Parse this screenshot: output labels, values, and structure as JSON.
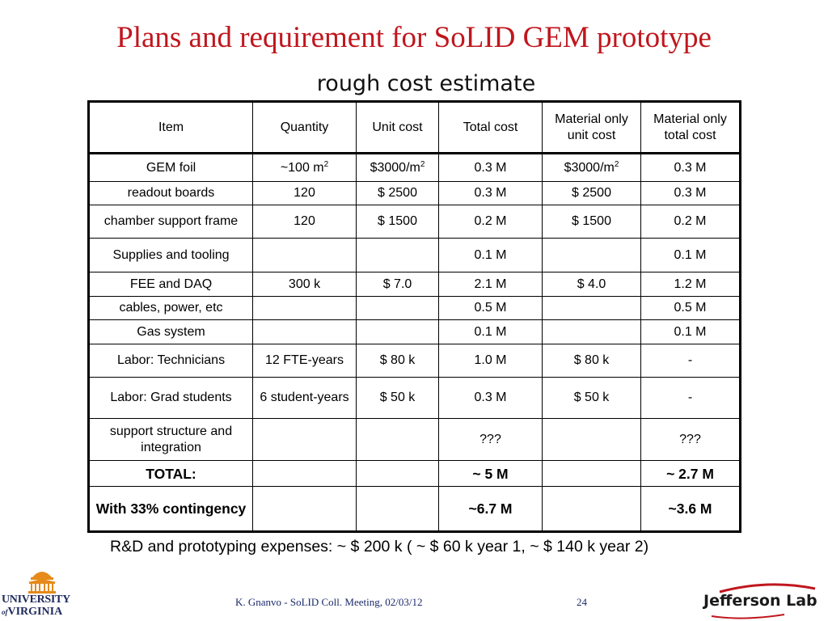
{
  "slide": {
    "title": "Plans and requirement for SoLID GEM prototype",
    "subtitle": "rough cost estimate",
    "note": "R&D and prototyping expenses: ~ $ 200 k ( ~ $ 60 k year 1, ~ $ 140 k year 2)"
  },
  "table": {
    "headers": [
      "Item",
      "Quantity",
      "Unit cost",
      "Total cost",
      "Material only unit cost",
      "Material only total cost"
    ],
    "rows": [
      [
        "GEM foil",
        "~100 m²",
        "$3000/m²",
        "0.3  M",
        "$3000/m²",
        "0.3  M"
      ],
      [
        "readout boards",
        "120",
        "$ 2500",
        "0.3 M",
        "$ 2500",
        "0.3 M"
      ],
      [
        "chamber support frame",
        "120",
        "$ 1500",
        "0.2 M",
        "$ 1500",
        "0.2 M"
      ],
      [
        "Supplies and tooling",
        "",
        "",
        "0.1 M",
        "",
        "0.1 M"
      ],
      [
        "FEE and DAQ",
        "300 k",
        "$ 7.0",
        "2.1 M",
        "$ 4.0",
        "1.2 M"
      ],
      [
        "cables, power, etc",
        "",
        "",
        "0.5 M",
        "",
        "0.5 M"
      ],
      [
        "Gas system",
        "",
        "",
        "0.1 M",
        "",
        "0.1 M"
      ],
      [
        "Labor: Technicians",
        "12 FTE-years",
        "$ 80 k",
        "1.0 M",
        "$ 80 k",
        "-"
      ],
      [
        "Labor: Grad students",
        "6 student-years",
        "$ 50 k",
        "0.3 M",
        "$ 50 k",
        "-"
      ],
      [
        "support structure and integration",
        "",
        "",
        "???",
        "",
        "???"
      ],
      [
        "TOTAL:",
        "",
        "",
        "~ 5 M",
        "",
        "~ 2.7 M"
      ],
      [
        "With 33% contingency",
        "",
        "",
        "~6.7 M",
        "",
        "~3.6 M"
      ]
    ]
  },
  "footer": {
    "text": "K. Gnanvo  -  SoLID Coll. Meeting, 02/03/12",
    "page_number": "24"
  },
  "logos": {
    "uva_line1": "UNIVERSITY",
    "uva_line2": "VIRGINIA",
    "uva_of": "of",
    "jlab": "Jefferson Lab"
  },
  "colors": {
    "title": "#c0161d",
    "footer": "#1b2a6b"
  }
}
